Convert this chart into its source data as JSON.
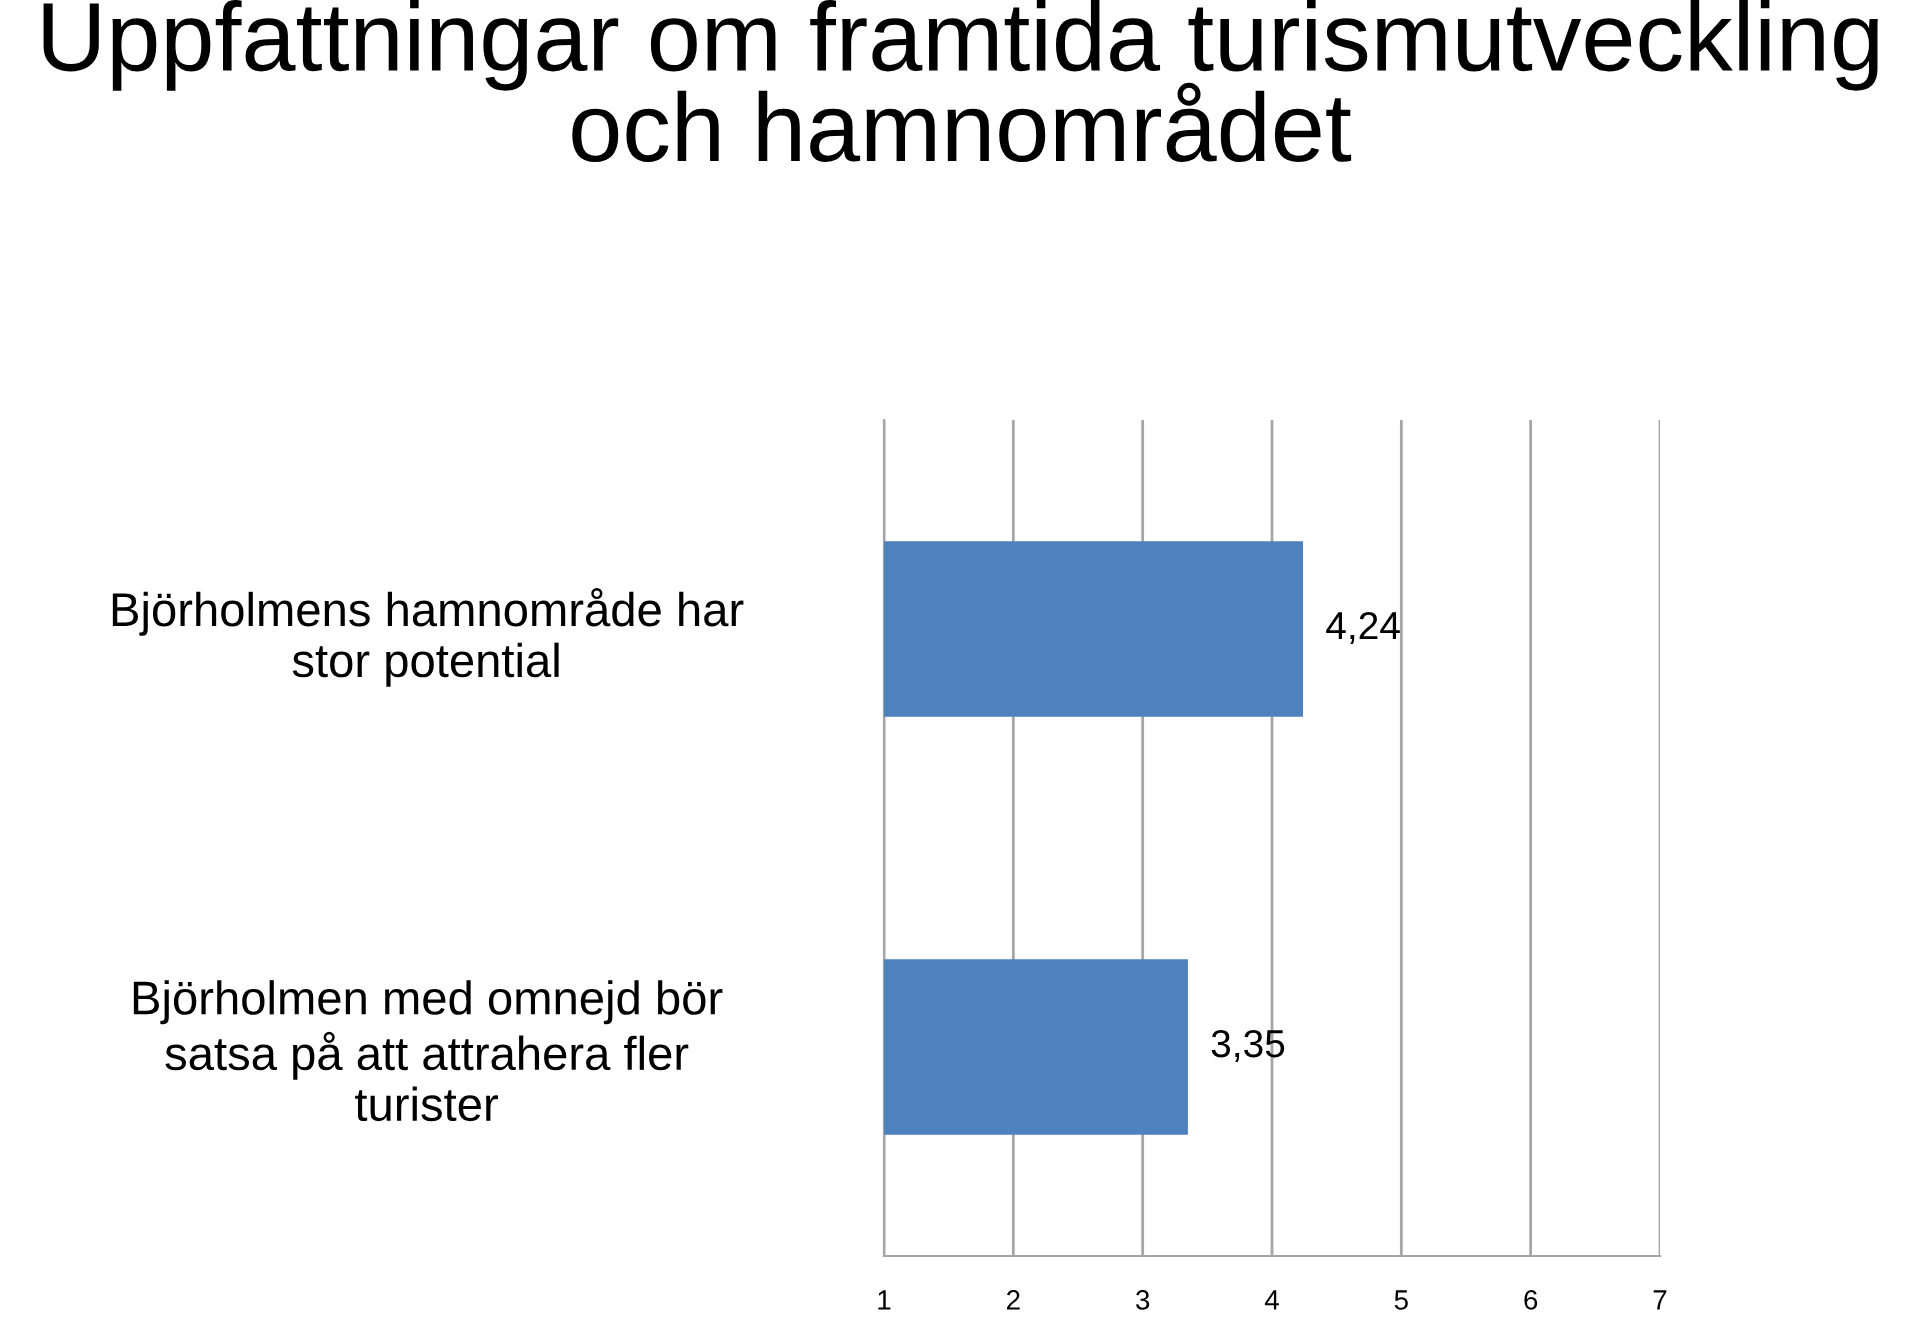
{
  "chart_data": {
    "type": "bar",
    "orientation": "horizontal",
    "title": "Uppfattningar om framtida turismutveckling\noch hamnområdet",
    "categories": [
      "Björholmens hamnområde har\nstor potential",
      "Björholmen med omnejd bör\nsatsa på att attrahera fler\nturister"
    ],
    "values": [
      4.24,
      3.35
    ],
    "value_labels": [
      "4,24",
      "3,35"
    ],
    "color": "#4f81bd",
    "xlim": [
      1,
      7
    ],
    "xticks": [
      1,
      2,
      3,
      4,
      5,
      6,
      7
    ],
    "grid": "x",
    "legend": false
  }
}
